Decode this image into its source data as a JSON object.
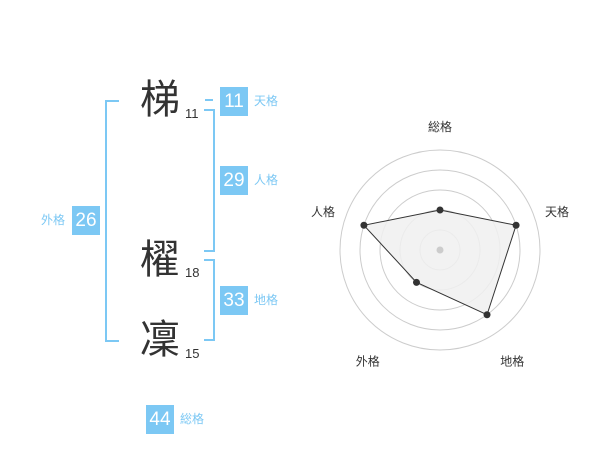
{
  "name": [
    {
      "char": "梯",
      "strokes": "11"
    },
    {
      "char": "櫂",
      "strokes": "18"
    },
    {
      "char": "凜",
      "strokes": "15"
    }
  ],
  "kaku": {
    "tenkaku": {
      "label": "天格",
      "value": "11"
    },
    "jinkaku": {
      "label": "人格",
      "value": "29"
    },
    "chikaku": {
      "label": "地格",
      "value": "33"
    },
    "gaikaku": {
      "label": "外格",
      "value": "26"
    },
    "soukaku": {
      "label": "総格",
      "value": "44"
    }
  },
  "chart_data": {
    "type": "radar",
    "axes": [
      "総格",
      "天格",
      "地格",
      "外格",
      "人格"
    ],
    "values": [
      2,
      4,
      4,
      2,
      4
    ],
    "max": 5,
    "rings": 5,
    "colors": {
      "fill": "#f0f0f0",
      "line": "#333333",
      "ring": "#cccccc"
    }
  }
}
